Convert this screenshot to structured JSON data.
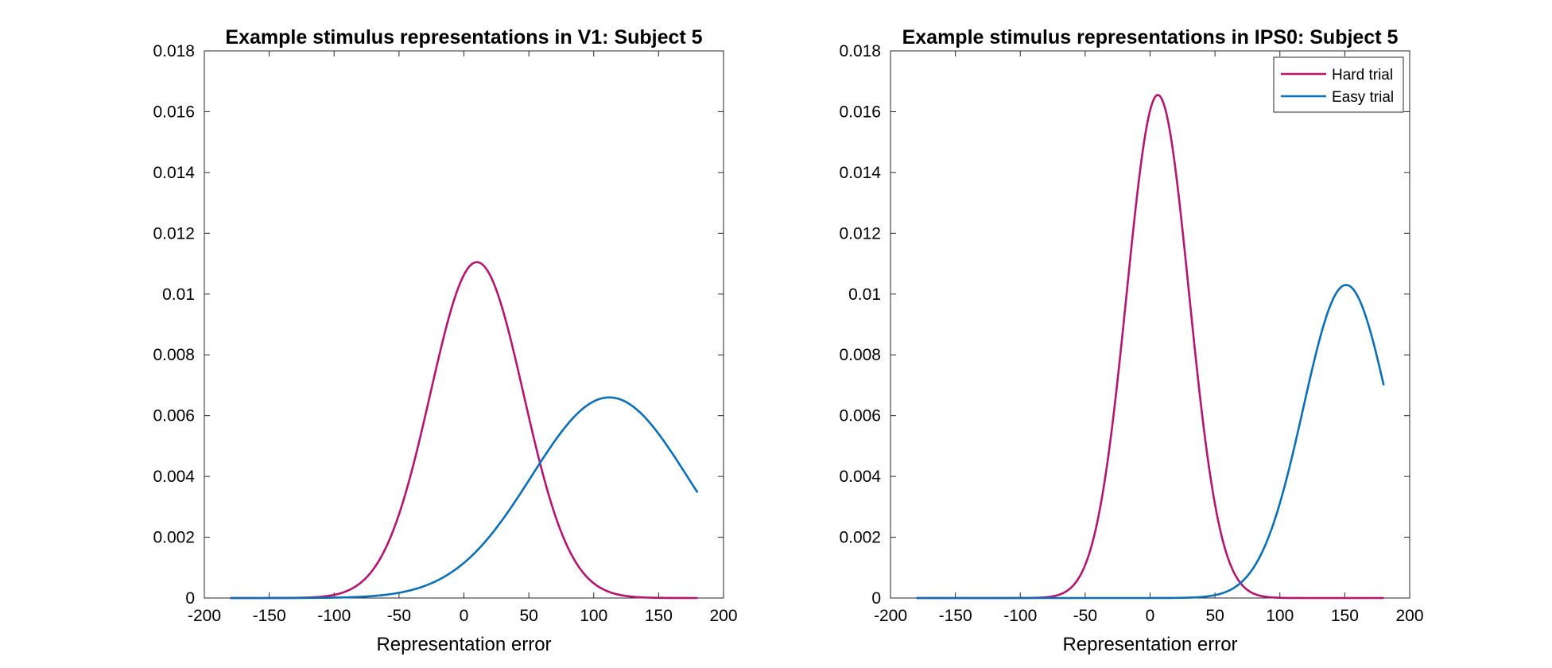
{
  "chart_data": [
    {
      "type": "line",
      "title": "Example stimulus representations in V1: Subject 5",
      "xlabel": "Representation error",
      "ylabel": "",
      "xlim": [
        -200,
        200
      ],
      "ylim": [
        0,
        0.018
      ],
      "xticks": [
        -200,
        -150,
        -100,
        -50,
        0,
        50,
        100,
        150,
        200
      ],
      "xtick_labels": [
        "-200",
        "-150",
        "-100",
        "-50",
        "0",
        "50",
        "100",
        "150",
        "200"
      ],
      "yticks": [
        0,
        0.002,
        0.004,
        0.006,
        0.008,
        0.01,
        0.012,
        0.014,
        0.016,
        0.018
      ],
      "ytick_labels": [
        "0",
        "0.002",
        "0.004",
        "0.006",
        "0.008",
        "0.01",
        "0.012",
        "0.014",
        "0.016",
        "0.018"
      ],
      "grid": false,
      "legend": null,
      "series": [
        {
          "color": "#B5156F",
          "curve": {
            "mu": 10,
            "sigma": 36,
            "peak": 0.01105
          },
          "x_range": [
            -180,
            180
          ]
        },
        {
          "color": "#0A6FB7",
          "curve": {
            "mu": 112,
            "sigma": 60,
            "peak": 0.0066
          },
          "x_range": [
            -180,
            180
          ]
        }
      ]
    },
    {
      "type": "line",
      "title": "Example stimulus representations in IPS0: Subject 5",
      "xlabel": "Representation error",
      "ylabel": "",
      "xlim": [
        -200,
        200
      ],
      "ylim": [
        0,
        0.018
      ],
      "xticks": [
        -200,
        -150,
        -100,
        -50,
        0,
        50,
        100,
        150,
        200
      ],
      "xtick_labels": [
        "-200",
        "-150",
        "-100",
        "-50",
        "0",
        "50",
        "100",
        "150",
        "200"
      ],
      "yticks": [
        0,
        0.002,
        0.004,
        0.006,
        0.008,
        0.01,
        0.012,
        0.014,
        0.016,
        0.018
      ],
      "ytick_labels": [
        "0",
        "0.002",
        "0.004",
        "0.006",
        "0.008",
        "0.01",
        "0.012",
        "0.014",
        "0.016",
        "0.018"
      ],
      "grid": false,
      "legend": "top-right",
      "series": [
        {
          "name": "Hard trial",
          "color": "#B5156F",
          "curve": {
            "mu": 6,
            "sigma": 24,
            "peak": 0.01655
          },
          "x_range": [
            -180,
            180
          ]
        },
        {
          "name": "Easy trial",
          "color": "#0A6FB7",
          "curve": {
            "mu": 151,
            "sigma": 33,
            "peak": 0.0103
          },
          "x_range": [
            -180,
            180
          ]
        }
      ]
    }
  ]
}
